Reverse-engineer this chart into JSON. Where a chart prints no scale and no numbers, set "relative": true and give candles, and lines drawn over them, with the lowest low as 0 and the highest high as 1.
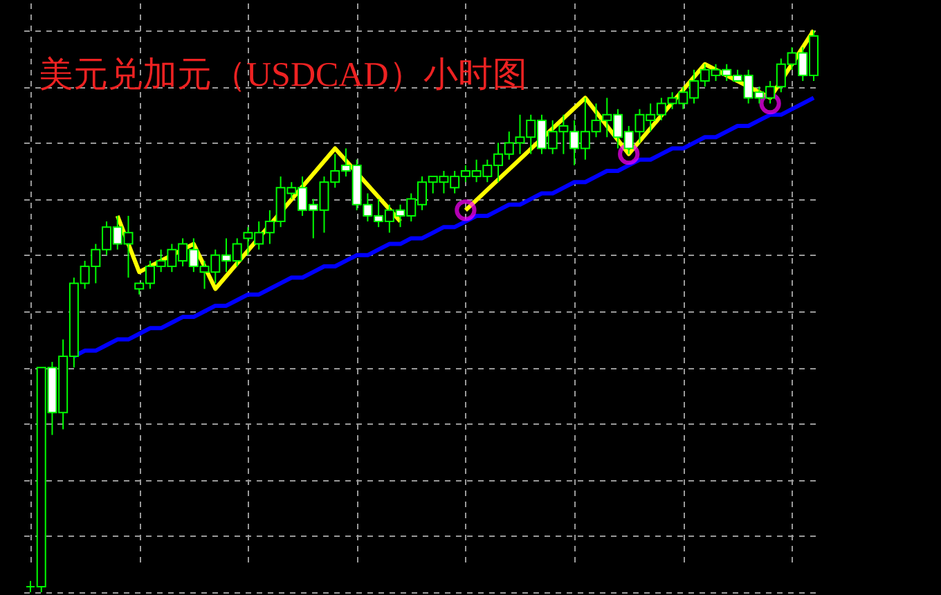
{
  "chart_data": {
    "type": "candlestick",
    "title": "美元兑加元（USDCAD）小时图",
    "relative": true,
    "grid": true,
    "color": "#00ff00",
    "categories": [
      null,
      null,
      null,
      null,
      null,
      null,
      null,
      null,
      null,
      null,
      null,
      null,
      null,
      null,
      null,
      null,
      null,
      null,
      null,
      null,
      null,
      null,
      null,
      null,
      null,
      null,
      null,
      null,
      null,
      null,
      null,
      null,
      null,
      null,
      null,
      null,
      null,
      null,
      null,
      null,
      null,
      null,
      null,
      null,
      null,
      null,
      null,
      null,
      null,
      null,
      null,
      null,
      null,
      null,
      null,
      null,
      null,
      null,
      null,
      null,
      null,
      null,
      null,
      null,
      null,
      null,
      null,
      null,
      null,
      null,
      null,
      null,
      null
    ],
    "ohlc": [
      [
        0.01,
        0.02,
        0.0,
        0.01
      ],
      [
        0.01,
        0.4,
        0.0,
        0.4
      ],
      [
        0.4,
        0.41,
        0.28,
        0.32
      ],
      [
        0.32,
        0.45,
        0.29,
        0.42
      ],
      [
        0.42,
        0.56,
        0.4,
        0.55
      ],
      [
        0.55,
        0.59,
        0.54,
        0.58
      ],
      [
        0.58,
        0.62,
        0.55,
        0.61
      ],
      [
        0.61,
        0.66,
        0.6,
        0.65
      ],
      [
        0.65,
        0.67,
        0.61,
        0.62
      ],
      [
        0.62,
        0.67,
        0.56,
        0.64
      ],
      [
        0.54,
        0.55,
        0.53,
        0.55
      ],
      [
        0.55,
        0.59,
        0.54,
        0.58
      ],
      [
        0.58,
        0.61,
        0.57,
        0.59
      ],
      [
        0.58,
        0.62,
        0.57,
        0.61
      ],
      [
        0.59,
        0.63,
        0.58,
        0.62
      ],
      [
        0.61,
        0.63,
        0.57,
        0.58
      ],
      [
        0.57,
        0.59,
        0.54,
        0.58
      ],
      [
        0.57,
        0.61,
        0.55,
        0.6
      ],
      [
        0.6,
        0.63,
        0.57,
        0.59
      ],
      [
        0.59,
        0.63,
        0.58,
        0.62
      ],
      [
        0.63,
        0.65,
        0.6,
        0.64
      ],
      [
        0.62,
        0.66,
        0.61,
        0.64
      ],
      [
        0.64,
        0.68,
        0.62,
        0.66
      ],
      [
        0.66,
        0.74,
        0.65,
        0.72
      ],
      [
        0.71,
        0.73,
        0.7,
        0.72
      ],
      [
        0.72,
        0.74,
        0.67,
        0.68
      ],
      [
        0.69,
        0.7,
        0.63,
        0.68
      ],
      [
        0.68,
        0.74,
        0.64,
        0.73
      ],
      [
        0.73,
        0.78,
        0.72,
        0.75
      ],
      [
        0.76,
        0.79,
        0.74,
        0.75
      ],
      [
        0.76,
        0.77,
        0.68,
        0.69
      ],
      [
        0.69,
        0.71,
        0.66,
        0.67
      ],
      [
        0.67,
        0.7,
        0.65,
        0.66
      ],
      [
        0.66,
        0.69,
        0.64,
        0.68
      ],
      [
        0.68,
        0.69,
        0.65,
        0.67
      ],
      [
        0.67,
        0.71,
        0.66,
        0.7
      ],
      [
        0.69,
        0.74,
        0.68,
        0.73
      ],
      [
        0.73,
        0.74,
        0.71,
        0.74
      ],
      [
        0.73,
        0.75,
        0.71,
        0.74
      ],
      [
        0.72,
        0.75,
        0.71,
        0.74
      ],
      [
        0.74,
        0.76,
        0.73,
        0.75
      ],
      [
        0.74,
        0.77,
        0.73,
        0.75
      ],
      [
        0.74,
        0.77,
        0.73,
        0.76
      ],
      [
        0.76,
        0.8,
        0.73,
        0.78
      ],
      [
        0.78,
        0.82,
        0.77,
        0.8
      ],
      [
        0.8,
        0.85,
        0.78,
        0.81
      ],
      [
        0.81,
        0.85,
        0.78,
        0.84
      ],
      [
        0.84,
        0.85,
        0.78,
        0.79
      ],
      [
        0.79,
        0.84,
        0.78,
        0.82
      ],
      [
        0.82,
        0.85,
        0.78,
        0.83
      ],
      [
        0.82,
        0.84,
        0.76,
        0.79
      ],
      [
        0.79,
        0.88,
        0.77,
        0.82
      ],
      [
        0.82,
        0.87,
        0.81,
        0.84
      ],
      [
        0.84,
        0.88,
        0.81,
        0.85
      ],
      [
        0.85,
        0.86,
        0.79,
        0.81
      ],
      [
        0.82,
        0.83,
        0.78,
        0.79
      ],
      [
        0.82,
        0.86,
        0.8,
        0.85
      ],
      [
        0.84,
        0.87,
        0.82,
        0.85
      ],
      [
        0.85,
        0.88,
        0.84,
        0.87
      ],
      [
        0.87,
        0.89,
        0.86,
        0.88
      ],
      [
        0.87,
        0.9,
        0.86,
        0.89
      ],
      [
        0.88,
        0.93,
        0.87,
        0.91
      ],
      [
        0.91,
        0.94,
        0.9,
        0.93
      ],
      [
        0.92,
        0.94,
        0.91,
        0.93
      ],
      [
        0.93,
        0.94,
        0.91,
        0.92
      ],
      [
        0.92,
        0.93,
        0.91,
        0.91
      ],
      [
        0.92,
        0.93,
        0.87,
        0.88
      ],
      [
        0.89,
        0.9,
        0.87,
        0.88
      ],
      [
        0.88,
        0.91,
        0.87,
        0.9
      ],
      [
        0.9,
        0.95,
        0.89,
        0.94
      ],
      [
        0.94,
        0.97,
        0.93,
        0.96
      ],
      [
        0.96,
        0.97,
        0.91,
        0.92
      ],
      [
        0.92,
        1.0,
        0.91,
        0.99
      ]
    ],
    "series": [
      {
        "type": "line",
        "color": "#0000ff",
        "values": [
          null,
          null,
          null,
          null,
          0.42,
          0.43,
          0.43,
          0.44,
          0.45,
          0.45,
          0.46,
          0.47,
          0.47,
          0.48,
          0.49,
          0.49,
          0.5,
          0.51,
          0.51,
          0.52,
          0.53,
          0.53,
          0.54,
          0.55,
          0.56,
          0.56,
          0.57,
          0.58,
          0.58,
          0.59,
          0.6,
          0.6,
          0.61,
          0.62,
          0.62,
          0.63,
          0.63,
          0.64,
          0.65,
          0.65,
          0.66,
          0.67,
          0.67,
          0.68,
          0.69,
          0.69,
          0.7,
          0.71,
          0.71,
          0.72,
          0.73,
          0.73,
          0.74,
          0.75,
          0.75,
          0.76,
          0.77,
          0.77,
          0.78,
          0.79,
          0.79,
          0.8,
          0.81,
          0.81,
          0.82,
          0.83,
          0.83,
          0.84,
          0.85,
          0.85,
          0.86,
          0.87,
          0.88
        ]
      },
      {
        "type": "line",
        "color": "#ffff00",
        "values": [
          null,
          null,
          null,
          null,
          null,
          null,
          null,
          null,
          0.67,
          null,
          0.57,
          null,
          null,
          null,
          null,
          0.62,
          null,
          0.54,
          null,
          null,
          null,
          null,
          null,
          null,
          null,
          null,
          null,
          null,
          0.79,
          null,
          null,
          null,
          null,
          null,
          0.66,
          null,
          null,
          null,
          null,
          null,
          null,
          null,
          null,
          null,
          null,
          null,
          null,
          null,
          null,
          null,
          null,
          null,
          null,
          null,
          null,
          null,
          null,
          null,
          null,
          null,
          null,
          null,
          null,
          null,
          null,
          null,
          null,
          null,
          null,
          null,
          null,
          null,
          null
        ]
      },
      {
        "type": "line",
        "color": "#ffff00",
        "values": [
          null,
          null,
          null,
          null,
          null,
          null,
          null,
          null,
          null,
          null,
          null,
          null,
          null,
          null,
          null,
          null,
          null,
          null,
          null,
          null,
          null,
          null,
          null,
          null,
          null,
          null,
          null,
          null,
          null,
          null,
          null,
          null,
          null,
          null,
          null,
          null,
          null,
          null,
          null,
          null,
          0.68,
          null,
          null,
          null,
          null,
          null,
          null,
          null,
          null,
          null,
          null,
          0.88,
          null,
          null,
          null,
          0.78,
          null,
          null,
          null,
          null,
          null,
          null,
          0.94,
          null,
          null,
          null,
          null,
          null,
          0.88,
          null,
          null,
          null,
          1.0
        ]
      },
      {
        "type": "scatter",
        "color": "#ff00ff",
        "marker": "circle",
        "values": [
          null,
          null,
          null,
          null,
          null,
          null,
          null,
          null,
          null,
          null,
          null,
          null,
          null,
          null,
          null,
          null,
          null,
          null,
          null,
          null,
          null,
          null,
          null,
          null,
          null,
          null,
          null,
          null,
          null,
          null,
          null,
          null,
          null,
          null,
          null,
          null,
          null,
          null,
          null,
          null,
          0.68,
          null,
          null,
          null,
          null,
          null,
          null,
          null,
          null,
          null,
          null,
          null,
          null,
          null,
          null,
          0.78,
          null,
          null,
          null,
          null,
          null,
          null,
          null,
          null,
          null,
          null,
          null,
          null,
          0.87,
          null,
          null,
          null,
          null
        ]
      }
    ]
  }
}
